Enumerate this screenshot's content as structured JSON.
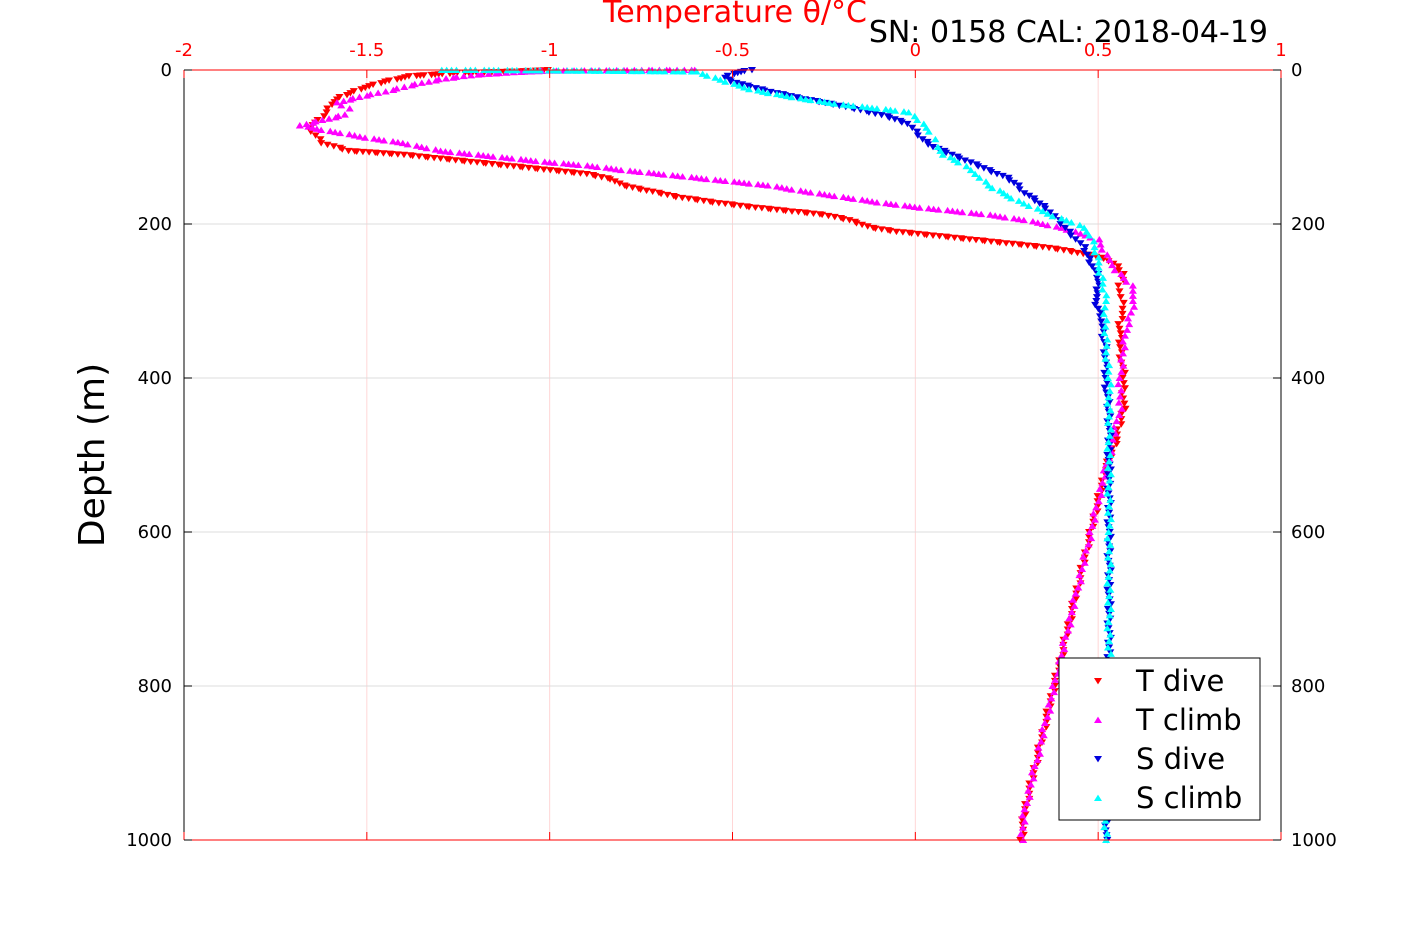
{
  "chart_data": {
    "type": "scatter",
    "title": "Temperature θ/°C",
    "subtitle": "SN: 0158  CAL: 2018-04-19",
    "xlabel": "Temperature θ/°C",
    "ylabel": "Depth (m)",
    "xlim": [
      -2,
      1
    ],
    "ylim": [
      0,
      1000
    ],
    "y_reversed": true,
    "x_axis_position": "top",
    "x_ticks": [
      "-2",
      "-1.5",
      "-1",
      "-0.5",
      "0",
      "0.5",
      "1"
    ],
    "x_tick_values": [
      -2,
      -1.5,
      -1,
      -0.5,
      0,
      0.5,
      1
    ],
    "y_ticks": [
      "0",
      "200",
      "400",
      "600",
      "800",
      "1000"
    ],
    "y_tick_values": [
      0,
      200,
      400,
      600,
      800,
      1000
    ],
    "grid": true,
    "legend_position": "bottom-right",
    "colors": {
      "x_axis": "#ff0000",
      "grid_x": "#ffd6d6",
      "grid_y": "#dcdcdc",
      "T dive": "#ff0000",
      "T climb": "#ff00ff",
      "S dive": "#0000dd",
      "S climb": "#00ffff"
    },
    "series": [
      {
        "name": "T dive",
        "marker": "triangle-down",
        "color": "#ff0000",
        "points": [
          [
            -1.0,
            0
          ],
          [
            -1.1,
            2
          ],
          [
            -1.25,
            4
          ],
          [
            -1.38,
            8
          ],
          [
            -1.45,
            15
          ],
          [
            -1.52,
            25
          ],
          [
            -1.57,
            35
          ],
          [
            -1.6,
            45
          ],
          [
            -1.61,
            55
          ],
          [
            -1.63,
            65
          ],
          [
            -1.66,
            75
          ],
          [
            -1.64,
            85
          ],
          [
            -1.62,
            95
          ],
          [
            -1.55,
            105
          ],
          [
            -1.4,
            110
          ],
          [
            -1.3,
            115
          ],
          [
            -1.2,
            120
          ],
          [
            -1.1,
            125
          ],
          [
            -1.0,
            130
          ],
          [
            -0.9,
            135
          ],
          [
            -0.83,
            142
          ],
          [
            -0.8,
            150
          ],
          [
            -0.72,
            158
          ],
          [
            -0.65,
            165
          ],
          [
            -0.55,
            172
          ],
          [
            -0.45,
            178
          ],
          [
            -0.35,
            183
          ],
          [
            -0.25,
            188
          ],
          [
            -0.18,
            195
          ],
          [
            -0.12,
            205
          ],
          [
            -0.05,
            210
          ],
          [
            0.05,
            215
          ],
          [
            0.15,
            220
          ],
          [
            0.25,
            225
          ],
          [
            0.35,
            230
          ],
          [
            0.42,
            235
          ],
          [
            0.47,
            240
          ],
          [
            0.52,
            245
          ],
          [
            0.55,
            255
          ],
          [
            0.57,
            265
          ],
          [
            0.56,
            280
          ],
          [
            0.56,
            295
          ],
          [
            0.57,
            310
          ],
          [
            0.56,
            330
          ],
          [
            0.56,
            360
          ],
          [
            0.57,
            400
          ],
          [
            0.57,
            440
          ],
          [
            0.55,
            480
          ],
          [
            0.52,
            520
          ],
          [
            0.5,
            560
          ],
          [
            0.48,
            600
          ],
          [
            0.46,
            640
          ],
          [
            0.44,
            680
          ],
          [
            0.42,
            720
          ],
          [
            0.4,
            760
          ],
          [
            0.38,
            800
          ],
          [
            0.36,
            840
          ],
          [
            0.34,
            880
          ],
          [
            0.32,
            920
          ],
          [
            0.3,
            960
          ],
          [
            0.29,
            1000
          ]
        ]
      },
      {
        "name": "T climb",
        "marker": "triangle-up",
        "color": "#ff00ff",
        "points": [
          [
            0.29,
            1000
          ],
          [
            0.3,
            960
          ],
          [
            0.32,
            920
          ],
          [
            0.34,
            880
          ],
          [
            0.36,
            840
          ],
          [
            0.38,
            800
          ],
          [
            0.4,
            760
          ],
          [
            0.42,
            720
          ],
          [
            0.44,
            680
          ],
          [
            0.46,
            640
          ],
          [
            0.48,
            600
          ],
          [
            0.5,
            560
          ],
          [
            0.52,
            520
          ],
          [
            0.54,
            480
          ],
          [
            0.56,
            440
          ],
          [
            0.56,
            400
          ],
          [
            0.57,
            360
          ],
          [
            0.58,
            330
          ],
          [
            0.6,
            300
          ],
          [
            0.59,
            280
          ],
          [
            0.55,
            260
          ],
          [
            0.52,
            240
          ],
          [
            0.5,
            220
          ],
          [
            0.4,
            205
          ],
          [
            0.3,
            195
          ],
          [
            0.2,
            188
          ],
          [
            0.1,
            183
          ],
          [
            0.0,
            178
          ],
          [
            -0.1,
            172
          ],
          [
            -0.2,
            165
          ],
          [
            -0.3,
            158
          ],
          [
            -0.4,
            150
          ],
          [
            -0.5,
            145
          ],
          [
            -0.6,
            140
          ],
          [
            -0.7,
            135
          ],
          [
            -0.8,
            130
          ],
          [
            -0.9,
            124
          ],
          [
            -1.0,
            120
          ],
          [
            -1.1,
            115
          ],
          [
            -1.2,
            110
          ],
          [
            -1.3,
            105
          ],
          [
            -1.35,
            100
          ],
          [
            -1.4,
            95
          ],
          [
            -1.5,
            88
          ],
          [
            -1.57,
            82
          ],
          [
            -1.62,
            78
          ],
          [
            -1.68,
            72
          ],
          [
            -1.62,
            65
          ],
          [
            -1.56,
            58
          ],
          [
            -1.55,
            50
          ],
          [
            -1.58,
            42
          ],
          [
            -1.52,
            35
          ],
          [
            -1.45,
            28
          ],
          [
            -1.38,
            20
          ],
          [
            -1.3,
            12
          ],
          [
            -1.2,
            6
          ],
          [
            -1.1,
            3
          ],
          [
            -1.0,
            1
          ],
          [
            -0.7,
            0
          ],
          [
            -0.6,
            0
          ]
        ]
      },
      {
        "name": "S dive",
        "marker": "triangle-down",
        "color": "#0000dd",
        "points": [
          [
            -0.45,
            0
          ],
          [
            -0.5,
            5
          ],
          [
            -0.52,
            10
          ],
          [
            -0.5,
            15
          ],
          [
            -0.45,
            22
          ],
          [
            -0.38,
            30
          ],
          [
            -0.3,
            38
          ],
          [
            -0.22,
            45
          ],
          [
            -0.15,
            52
          ],
          [
            -0.08,
            60
          ],
          [
            -0.02,
            70
          ],
          [
            0.0,
            80
          ],
          [
            0.02,
            90
          ],
          [
            0.05,
            100
          ],
          [
            0.1,
            110
          ],
          [
            0.15,
            120
          ],
          [
            0.2,
            130
          ],
          [
            0.25,
            140
          ],
          [
            0.28,
            150
          ],
          [
            0.3,
            160
          ],
          [
            0.33,
            170
          ],
          [
            0.36,
            180
          ],
          [
            0.38,
            190
          ],
          [
            0.4,
            200
          ],
          [
            0.42,
            210
          ],
          [
            0.44,
            220
          ],
          [
            0.46,
            230
          ],
          [
            0.47,
            240
          ],
          [
            0.48,
            250
          ],
          [
            0.49,
            260
          ],
          [
            0.5,
            270
          ],
          [
            0.5,
            280
          ],
          [
            0.5,
            290
          ],
          [
            0.49,
            300
          ],
          [
            0.5,
            310
          ],
          [
            0.51,
            320
          ],
          [
            0.51,
            340
          ],
          [
            0.52,
            360
          ],
          [
            0.52,
            400
          ],
          [
            0.53,
            450
          ],
          [
            0.53,
            500
          ],
          [
            0.53,
            550
          ],
          [
            0.53,
            600
          ],
          [
            0.53,
            650
          ],
          [
            0.53,
            700
          ],
          [
            0.53,
            750
          ],
          [
            0.53,
            800
          ],
          [
            0.53,
            850
          ],
          [
            0.53,
            900
          ],
          [
            0.53,
            950
          ],
          [
            0.52,
            1000
          ]
        ]
      },
      {
        "name": "S climb",
        "marker": "triangle-up",
        "color": "#00ffff",
        "points": [
          [
            0.52,
            1000
          ],
          [
            0.52,
            950
          ],
          [
            0.53,
            900
          ],
          [
            0.53,
            850
          ],
          [
            0.53,
            800
          ],
          [
            0.53,
            750
          ],
          [
            0.53,
            700
          ],
          [
            0.53,
            650
          ],
          [
            0.53,
            600
          ],
          [
            0.53,
            550
          ],
          [
            0.53,
            500
          ],
          [
            0.53,
            450
          ],
          [
            0.53,
            400
          ],
          [
            0.52,
            350
          ],
          [
            0.52,
            300
          ],
          [
            0.51,
            270
          ],
          [
            0.5,
            250
          ],
          [
            0.49,
            230
          ],
          [
            0.48,
            215
          ],
          [
            0.46,
            205
          ],
          [
            0.43,
            198
          ],
          [
            0.38,
            190
          ],
          [
            0.33,
            180
          ],
          [
            0.28,
            170
          ],
          [
            0.24,
            160
          ],
          [
            0.2,
            150
          ],
          [
            0.18,
            140
          ],
          [
            0.15,
            130
          ],
          [
            0.12,
            120
          ],
          [
            0.08,
            110
          ],
          [
            0.06,
            100
          ],
          [
            0.05,
            90
          ],
          [
            0.04,
            80
          ],
          [
            0.02,
            70
          ],
          [
            0.0,
            60
          ],
          [
            -0.02,
            55
          ],
          [
            -0.1,
            50
          ],
          [
            -0.2,
            45
          ],
          [
            -0.3,
            38
          ],
          [
            -0.4,
            30
          ],
          [
            -0.45,
            25
          ],
          [
            -0.5,
            18
          ],
          [
            -0.55,
            10
          ],
          [
            -0.58,
            5
          ],
          [
            -0.6,
            2
          ],
          [
            -1.2,
            0
          ],
          [
            -1.3,
            0
          ]
        ]
      }
    ]
  }
}
